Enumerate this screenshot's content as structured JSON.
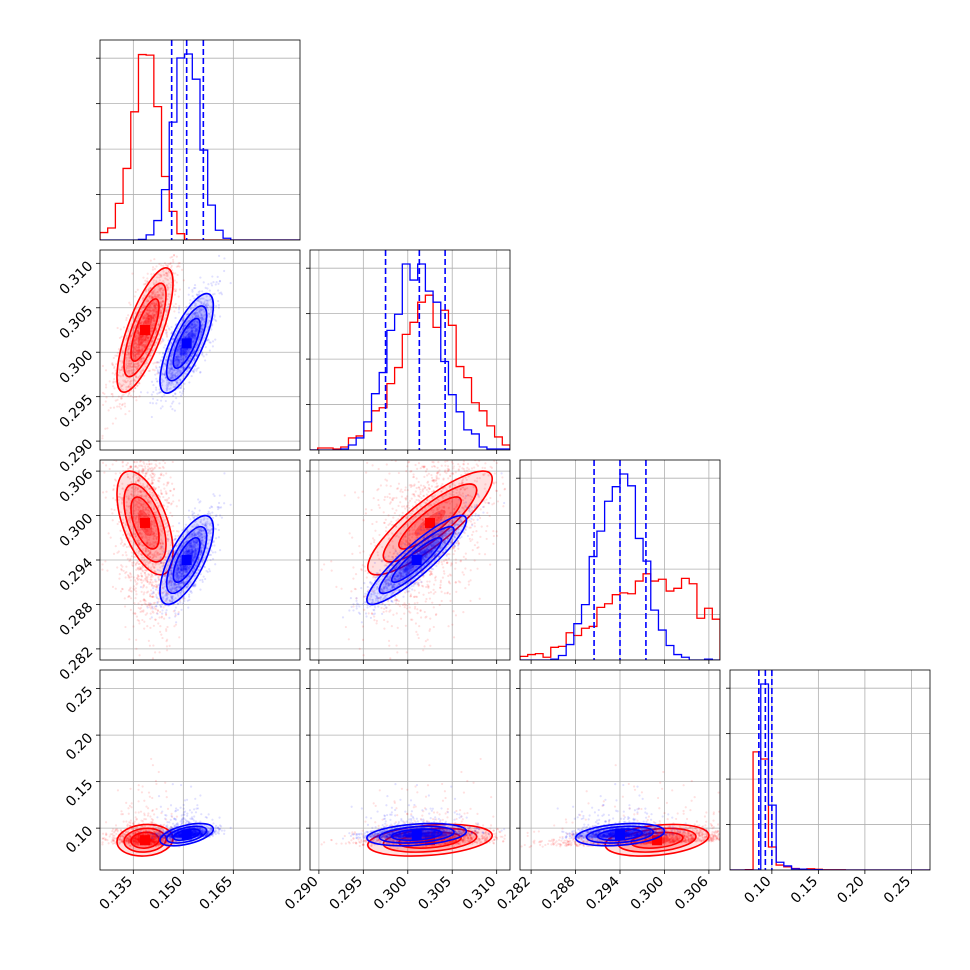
{
  "chart_data": {
    "type": "corner",
    "grid": true,
    "params": [
      {
        "axis_range": [
          0.125,
          0.185
        ],
        "ticks": [
          0.135,
          0.15,
          0.165
        ],
        "tick_labels": [
          "0.135",
          "0.150",
          "0.165"
        ]
      },
      {
        "axis_range": [
          0.289,
          0.3115
        ],
        "ticks": [
          0.29,
          0.295,
          0.3,
          0.305,
          0.31
        ],
        "tick_labels": [
          "0.290",
          "0.295",
          "0.300",
          "0.305",
          "0.310"
        ]
      },
      {
        "axis_range": [
          0.2805,
          0.3075
        ],
        "ticks": [
          0.282,
          0.288,
          0.294,
          0.3,
          0.306
        ],
        "tick_labels": [
          "0.282",
          "0.288",
          "0.294",
          "0.300",
          "0.306"
        ]
      },
      {
        "axis_range": [
          0.055,
          0.27
        ],
        "ticks": [
          0.1,
          0.15,
          0.2,
          0.25
        ],
        "tick_labels": [
          "0.10",
          "0.15",
          "0.20",
          "0.25"
        ]
      }
    ],
    "series": [
      {
        "color": "#ff0000",
        "mean": [
          0.1385,
          0.3025,
          0.299,
          0.087
        ],
        "std": [
          0.0042,
          0.0035,
          0.0035,
          0.0085
        ],
        "corr": [
          [
            0,
            1,
            0.75
          ],
          [
            0,
            2,
            -0.55
          ],
          [
            1,
            2,
            0.85
          ],
          [
            0,
            3,
            0.1
          ],
          [
            1,
            3,
            0.3
          ],
          [
            2,
            3,
            0.3
          ]
        ]
      },
      {
        "color": "#0000ff",
        "mean": [
          0.151,
          0.301,
          0.294,
          0.093
        ],
        "std": [
          0.004,
          0.0028,
          0.003,
          0.006
        ],
        "corr": [
          [
            0,
            1,
            0.75
          ],
          [
            0,
            2,
            0.7
          ],
          [
            1,
            2,
            0.9
          ],
          [
            0,
            3,
            0.5
          ],
          [
            1,
            3,
            0.3
          ],
          [
            2,
            3,
            0.3
          ]
        ]
      }
    ],
    "quantile_lines": {
      "color": "#0000ff",
      "values": [
        [
          0.1465,
          0.151,
          0.156
        ],
        [
          0.2975,
          0.3013,
          0.3042
        ],
        [
          0.2905,
          0.294,
          0.2975
        ],
        [
          0.086,
          0.093,
          0.1
        ]
      ]
    }
  }
}
